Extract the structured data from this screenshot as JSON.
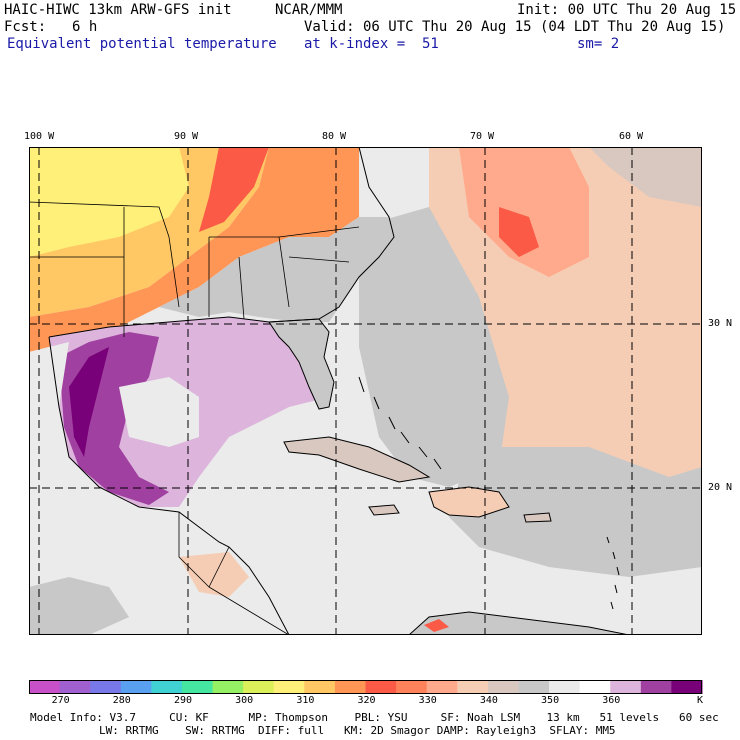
{
  "header": {
    "model": "HAIC-HIWC 13km ARW-GFS init",
    "center": "NCAR/MMM",
    "init": "Init: 00 UTC Thu 20 Aug 15",
    "fcst_label": "Fcst:",
    "fcst_value": "6 h",
    "valid": "Valid: 06 UTC Thu 20 Aug 15 (04 LDT Thu 20 Aug 15)",
    "field": "Equivalent potential temperature",
    "level": "at k-index =  51",
    "smooth": "sm= 2"
  },
  "map": {
    "lon_labels": [
      "100 W",
      "90 W",
      "80 W",
      "70 W",
      "60 W"
    ],
    "lat_labels": [
      "30 N",
      "20 N"
    ],
    "colors": {
      "grid_line": "#000000",
      "coast": "#000000"
    }
  },
  "colorbar": {
    "ticks": [
      "270",
      "280",
      "290",
      "300",
      "310",
      "320",
      "330",
      "340",
      "350",
      "360"
    ],
    "unit": "K",
    "colors": [
      "#c850c8",
      "#a060d0",
      "#7878e8",
      "#5aa0f0",
      "#40d2d2",
      "#44e6a0",
      "#96f064",
      "#dcf05a",
      "#fff07a",
      "#ffc864",
      "#ff9655",
      "#fa5a46",
      "#ff825a",
      "#ffaa8c",
      "#f5cdb4",
      "#d8c8c0",
      "#c8c8c8",
      "#ebebeb",
      "#ffffff",
      "#dcb4dc",
      "#a040a0",
      "#780078"
    ]
  },
  "footer": {
    "line1": "Model Info: V3.7     CU: KF      MP: Thompson    PBL: YSU     SF: Noah LSM    13 km   51 levels   60 sec",
    "line2": "LW: RRTMG    SW: RRTMG  DIFF: full   KM: 2D Smagor DAMP: Rayleigh3  SFLAY: MM5"
  }
}
